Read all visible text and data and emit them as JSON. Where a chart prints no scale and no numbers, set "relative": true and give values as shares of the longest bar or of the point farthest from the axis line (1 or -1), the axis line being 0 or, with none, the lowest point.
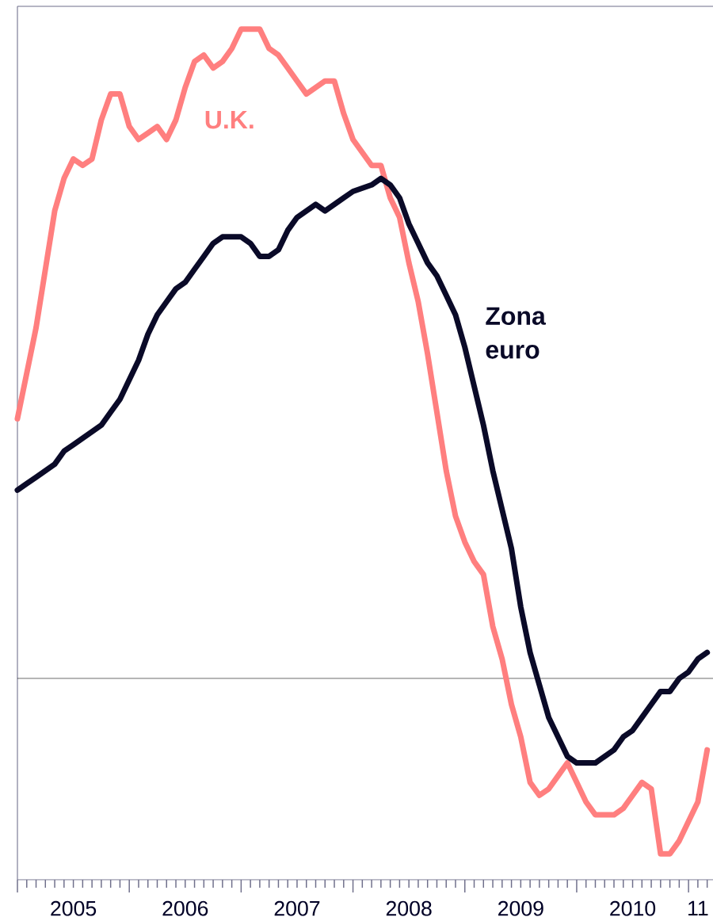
{
  "chart_data": {
    "type": "line",
    "relative": true,
    "tick_labels": "x",
    "xlim": [
      "2005-01",
      "2011-03-20"
    ],
    "xticks": [
      {
        "value": "2005-07",
        "label": "2005"
      },
      {
        "value": "2006-07",
        "label": "2006"
      },
      {
        "value": "2007-07",
        "label": "2007"
      },
      {
        "value": "2008-07",
        "label": "2008"
      },
      {
        "value": "2009-07",
        "label": "2009"
      },
      {
        "value": "2010-07",
        "label": "2010"
      },
      {
        "value": "2011-02",
        "label": "11"
      }
    ],
    "x": [
      "2005-01",
      "2005-02",
      "2005-03",
      "2005-04",
      "2005-05",
      "2005-06",
      "2005-07",
      "2005-08",
      "2005-09",
      "2005-10",
      "2005-11",
      "2005-12",
      "2006-01",
      "2006-02",
      "2006-03",
      "2006-04",
      "2006-05",
      "2006-06",
      "2006-07",
      "2006-08",
      "2006-09",
      "2006-10",
      "2006-11",
      "2006-12",
      "2007-01",
      "2007-02",
      "2007-03",
      "2007-04",
      "2007-05",
      "2007-06",
      "2007-07",
      "2007-08",
      "2007-09",
      "2007-10",
      "2007-11",
      "2007-12",
      "2008-01",
      "2008-03",
      "2008-04",
      "2008-05",
      "2008-06",
      "2008-07",
      "2008-08",
      "2008-09",
      "2008-10",
      "2008-11",
      "2008-12",
      "2009-01",
      "2009-02",
      "2009-03",
      "2009-04",
      "2009-05",
      "2009-06",
      "2009-07",
      "2009-08",
      "2009-09",
      "2009-10",
      "2009-11",
      "2009-12",
      "2010-01",
      "2010-02",
      "2010-03",
      "2010-04",
      "2010-05",
      "2010-06",
      "2010-07",
      "2010-08",
      "2010-09",
      "2010-10",
      "2010-11",
      "2010-12",
      "2011-01",
      "2011-02",
      "2011-03"
    ],
    "series": [
      {
        "name": "U.K.",
        "color": "#ff7f7f",
        "values": [
          0.4,
          0.47,
          0.54,
          0.63,
          0.72,
          0.77,
          0.8,
          0.79,
          0.8,
          0.86,
          0.9,
          0.9,
          0.85,
          0.83,
          0.84,
          0.85,
          0.83,
          0.86,
          0.91,
          0.95,
          0.96,
          0.94,
          0.95,
          0.97,
          1.0,
          1.0,
          1.0,
          0.97,
          0.96,
          0.94,
          0.92,
          0.9,
          0.91,
          0.92,
          0.92,
          0.87,
          0.83,
          0.79,
          0.79,
          0.74,
          0.71,
          0.64,
          0.58,
          0.5,
          0.41,
          0.32,
          0.25,
          0.21,
          0.18,
          0.16,
          0.08,
          0.03,
          -0.04,
          -0.09,
          -0.16,
          -0.18,
          -0.17,
          -0.15,
          -0.13,
          -0.16,
          -0.19,
          -0.21,
          -0.21,
          -0.21,
          -0.2,
          -0.18,
          -0.16,
          -0.17,
          -0.27,
          -0.27,
          -0.25,
          -0.22,
          -0.19,
          -0.11
        ]
      },
      {
        "name": "Zona euro",
        "color": "#0a0a28",
        "values": [
          0.29,
          0.3,
          0.31,
          0.32,
          0.33,
          0.35,
          0.36,
          0.37,
          0.38,
          0.39,
          0.41,
          0.43,
          0.46,
          0.49,
          0.53,
          0.56,
          0.58,
          0.6,
          0.61,
          0.63,
          0.65,
          0.67,
          0.68,
          0.68,
          0.68,
          0.67,
          0.65,
          0.65,
          0.66,
          0.69,
          0.71,
          0.72,
          0.73,
          0.72,
          0.73,
          0.74,
          0.75,
          0.76,
          0.77,
          0.76,
          0.74,
          0.7,
          0.67,
          0.64,
          0.62,
          0.59,
          0.56,
          0.51,
          0.45,
          0.39,
          0.32,
          0.26,
          0.2,
          0.11,
          0.04,
          -0.01,
          -0.06,
          -0.09,
          -0.12,
          -0.13,
          -0.13,
          -0.13,
          -0.12,
          -0.11,
          -0.09,
          -0.08,
          -0.06,
          -0.04,
          -0.02,
          -0.02,
          0.0,
          0.01,
          0.03,
          0.04
        ]
      }
    ]
  }
}
